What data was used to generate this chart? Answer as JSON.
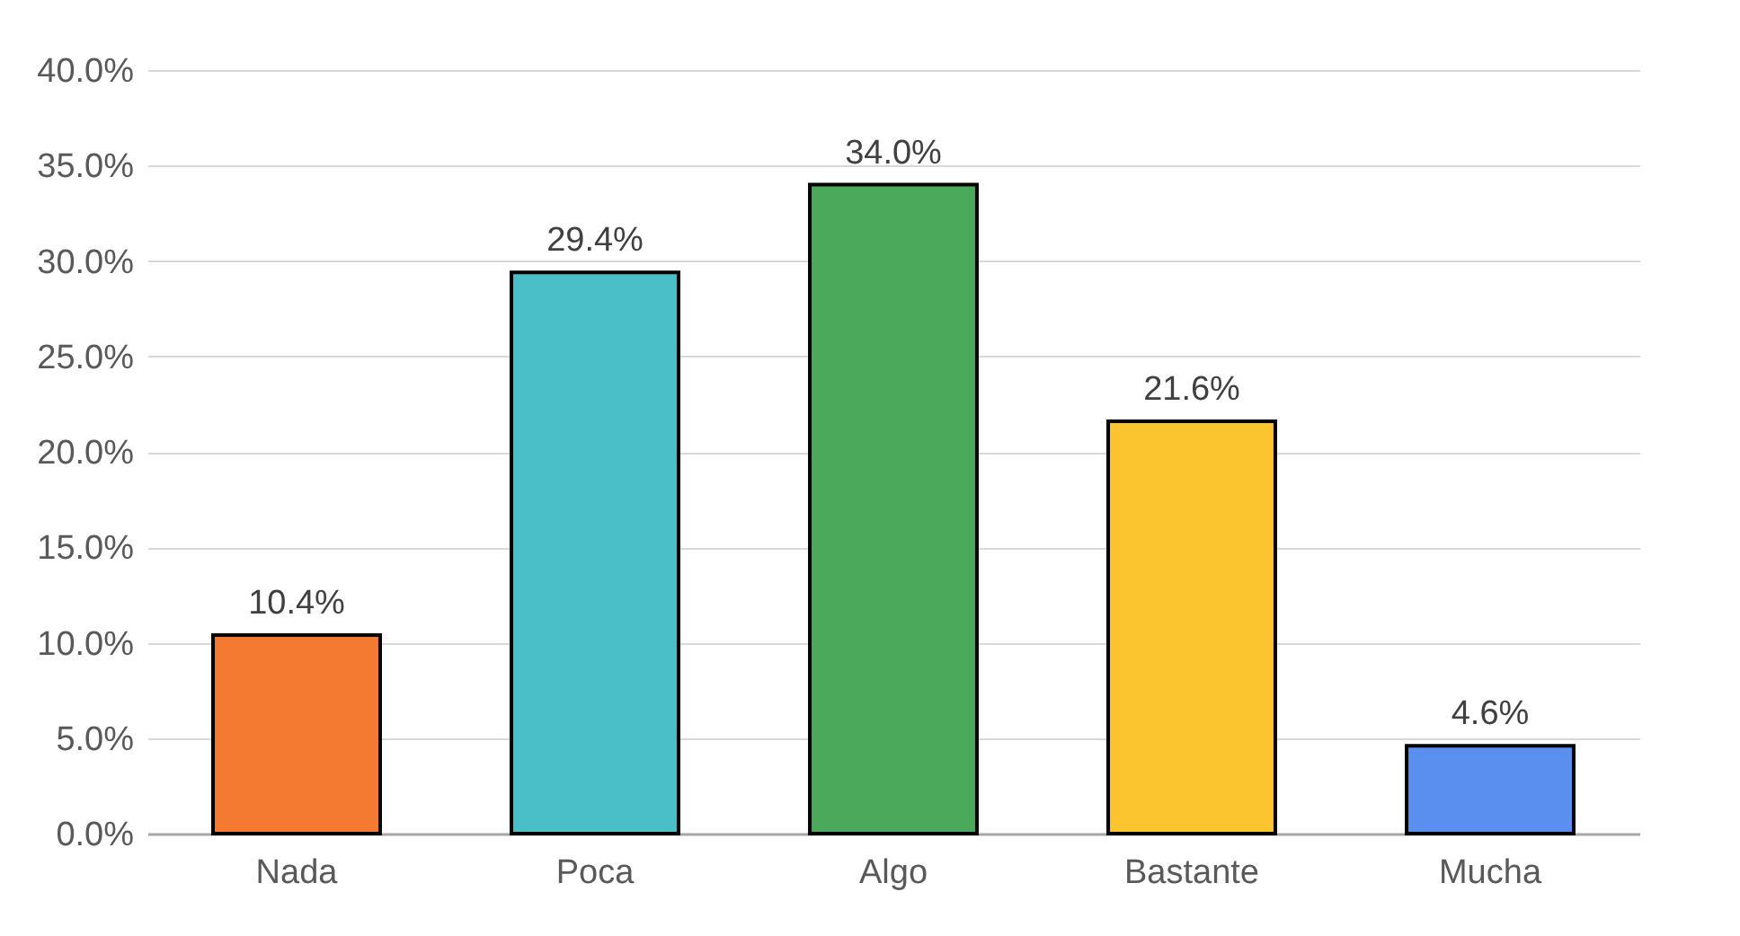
{
  "chart_data": {
    "type": "bar",
    "categories": [
      "Nada",
      "Poca",
      "Algo",
      "Bastante",
      "Mucha"
    ],
    "values": [
      10.4,
      29.4,
      34.0,
      21.6,
      4.6
    ],
    "value_labels": [
      "10.4%",
      "29.4%",
      "34.0%",
      "21.6%",
      "4.6%"
    ],
    "colors": [
      "#f47a32",
      "#4bbfc8",
      "#4aa95a",
      "#fbc530",
      "#5a8ff0"
    ],
    "ylim": [
      0,
      40
    ],
    "yticks": [
      {
        "value": 0,
        "label": "0.0%"
      },
      {
        "value": 5,
        "label": "5.0%"
      },
      {
        "value": 10,
        "label": "10.0%"
      },
      {
        "value": 15,
        "label": "15.0%"
      },
      {
        "value": 20,
        "label": "20.0%"
      },
      {
        "value": 25,
        "label": "25.0%"
      },
      {
        "value": 30,
        "label": "30.0%"
      },
      {
        "value": 35,
        "label": "35.0%"
      },
      {
        "value": 40,
        "label": "40.0%"
      }
    ],
    "grid": "y",
    "legend": false
  }
}
